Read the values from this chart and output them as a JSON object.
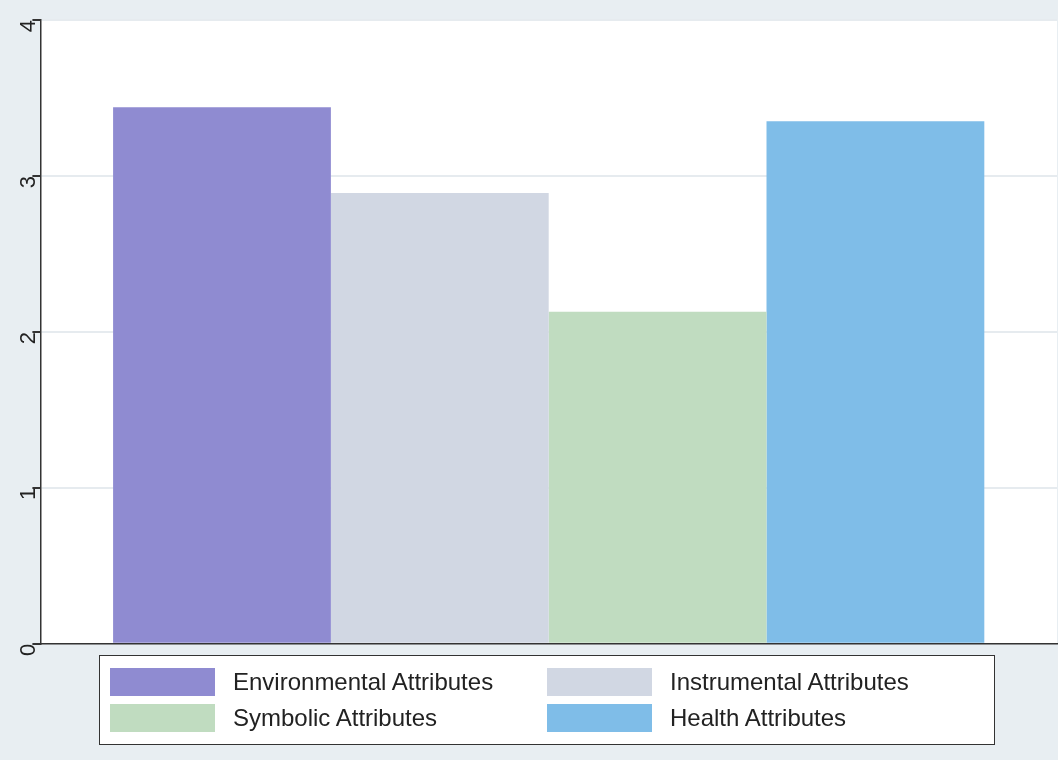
{
  "chart_data": {
    "type": "bar",
    "categories": [
      null
    ],
    "series": [
      {
        "name": "Environmental Attributes",
        "color": "#8f8bd1",
        "values": [
          3.44
        ]
      },
      {
        "name": "Instrumental Attributes",
        "color": "#d1d7e3",
        "values": [
          2.89
        ]
      },
      {
        "name": "Symbolic Attributes",
        "color": "#c0dcc0",
        "values": [
          2.13
        ]
      },
      {
        "name": "Health Attributes",
        "color": "#7fbde8",
        "values": [
          3.35
        ]
      }
    ],
    "ylim": [
      0,
      4
    ],
    "yticks": [
      0,
      1,
      2,
      3,
      4
    ],
    "grid": "y",
    "legend": "bottom"
  }
}
